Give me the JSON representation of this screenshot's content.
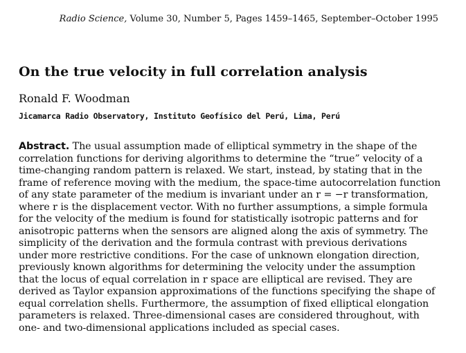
{
  "header": {
    "journal_name": "Radio Science,",
    "citation": " Volume 30, Number 5, Pages 1459–1465, September–October 1995"
  },
  "title": "On the true velocity in full correlation analysis",
  "author": "Ronald F. Woodman",
  "affiliation": "Jicamarca Radio Observatory, Instituto Geofísico del Perú, Lima, Perú",
  "abstract": {
    "label": "Abstract.",
    "lines": [
      " The usual assumption made of elliptical symmetry in the shape of the",
      "correlation functions for deriving algorithms to determine the “true” velocity of a",
      "time-changing random pattern is relaxed. We start, instead, by stating that in the",
      "frame of reference moving with the medium, the space-time autocorrelation function",
      "of any state parameter of the medium is invariant under an r = −r transformation,",
      "where r is the displacement vector. With no further assumptions, a simple formula",
      "for the velocity of the medium is found for statistically isotropic patterns and for",
      "anisotropic patterns when the sensors are aligned along the axis of symmetry. The",
      "simplicity of the derivation and the formula contrast with previous derivations",
      "under more restrictive conditions. For the case of unknown elongation direction,",
      "previously known algorithms for determining the velocity under the assumption",
      "that the locus of equal correlation in r space are elliptical are revised. They are",
      "derived as Taylor expansion approximations of the functions specifying the shape of",
      "equal correlation shells. Furthermore, the assumption of fixed elliptical elongation",
      "parameters is relaxed. Three-dimensional cases are considered throughout, with",
      "one- and two-dimensional applications included as special cases."
    ]
  }
}
